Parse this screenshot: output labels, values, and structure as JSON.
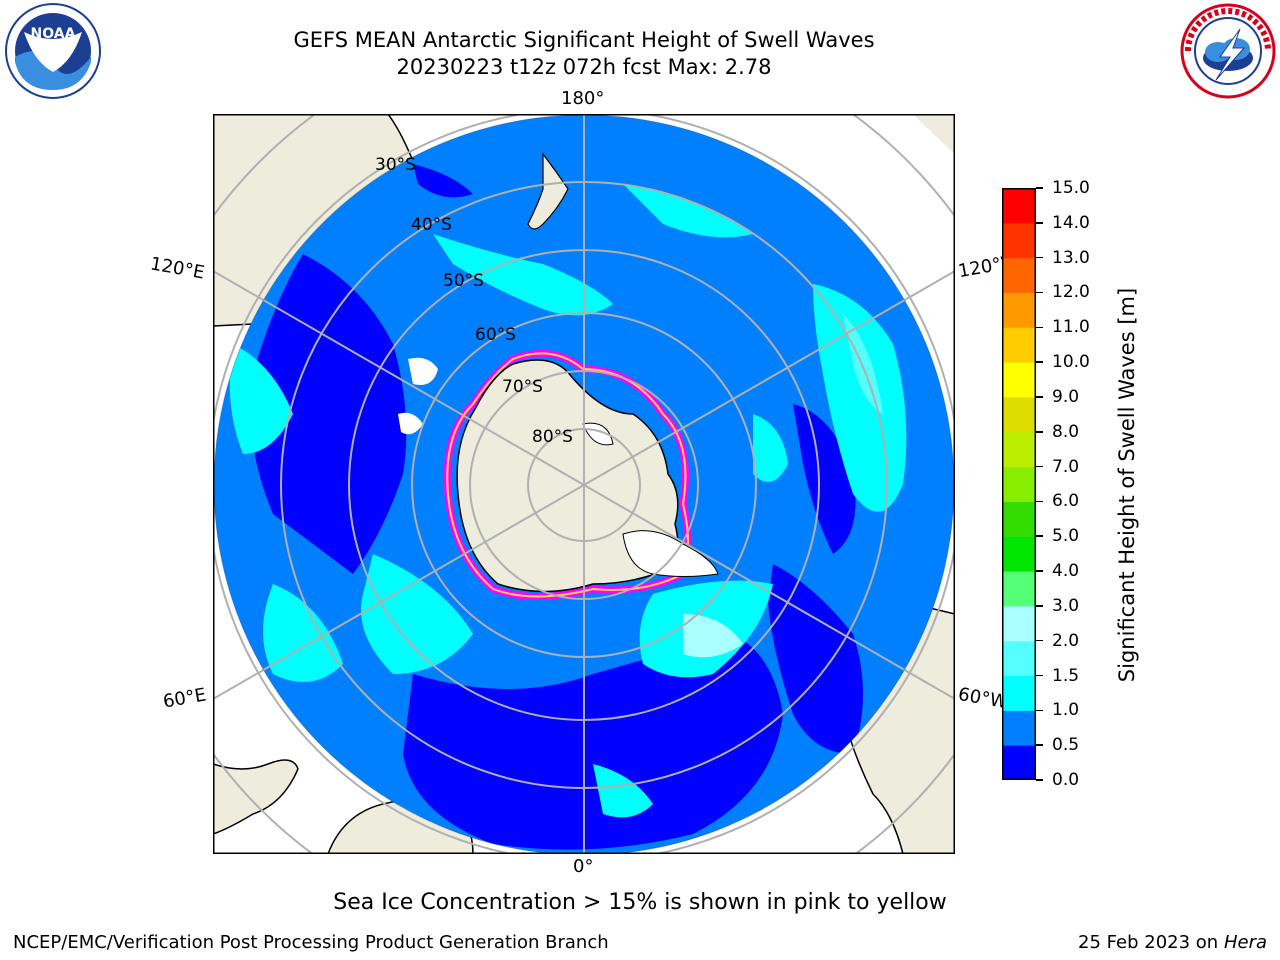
{
  "title": {
    "line1": "GEFS MEAN Antarctic Significant Height of Swell Waves",
    "line2": "20230223 t12z 072h fcst   Max: 2.78"
  },
  "logos": {
    "left": "NOAA",
    "right": "NATIONAL WEATHER SERVICE"
  },
  "map": {
    "projection": "south-polar-stereographic",
    "lon_labels": {
      "top": "180°",
      "bottom": "0°",
      "left_upper": "120°E",
      "left_lower": "60°E",
      "right_upper": "120°W",
      "right_lower": "60°W"
    },
    "lat_labels": [
      "30°S",
      "40°S",
      "50°S",
      "60°S",
      "70°S",
      "80°S"
    ],
    "colors": {
      "ocean_low": "#0000ff",
      "ocean_mid": "#0080ff",
      "swell": "#00ffff",
      "land": "#eeecdc",
      "ice": "#ff00ff"
    }
  },
  "colorbar": {
    "label": "Significant Height of Swell Waves [m]",
    "ticks": [
      "0.0",
      "0.5",
      "1.0",
      "1.5",
      "2.0",
      "3.0",
      "4.0",
      "5.0",
      "6.0",
      "7.0",
      "8.0",
      "9.0",
      "10.0",
      "11.0",
      "12.0",
      "13.0",
      "14.0",
      "15.0"
    ],
    "colors": [
      "#0000ff",
      "#0080ff",
      "#00ffff",
      "#55ffff",
      "#aaffff",
      "#55ff77",
      "#00e600",
      "#33dd00",
      "#88ee00",
      "#bbee00",
      "#dddd00",
      "#ffff00",
      "#ffcc00",
      "#ff9900",
      "#ff6600",
      "#ff3300",
      "#ff0000"
    ]
  },
  "note": "Sea Ice Concentration > 15% is shown in pink to yellow",
  "footer": {
    "left": "NCEP/EMC/Verification Post Processing Product Generation Branch",
    "date": "25 Feb 2023 on",
    "host": "Hera"
  }
}
